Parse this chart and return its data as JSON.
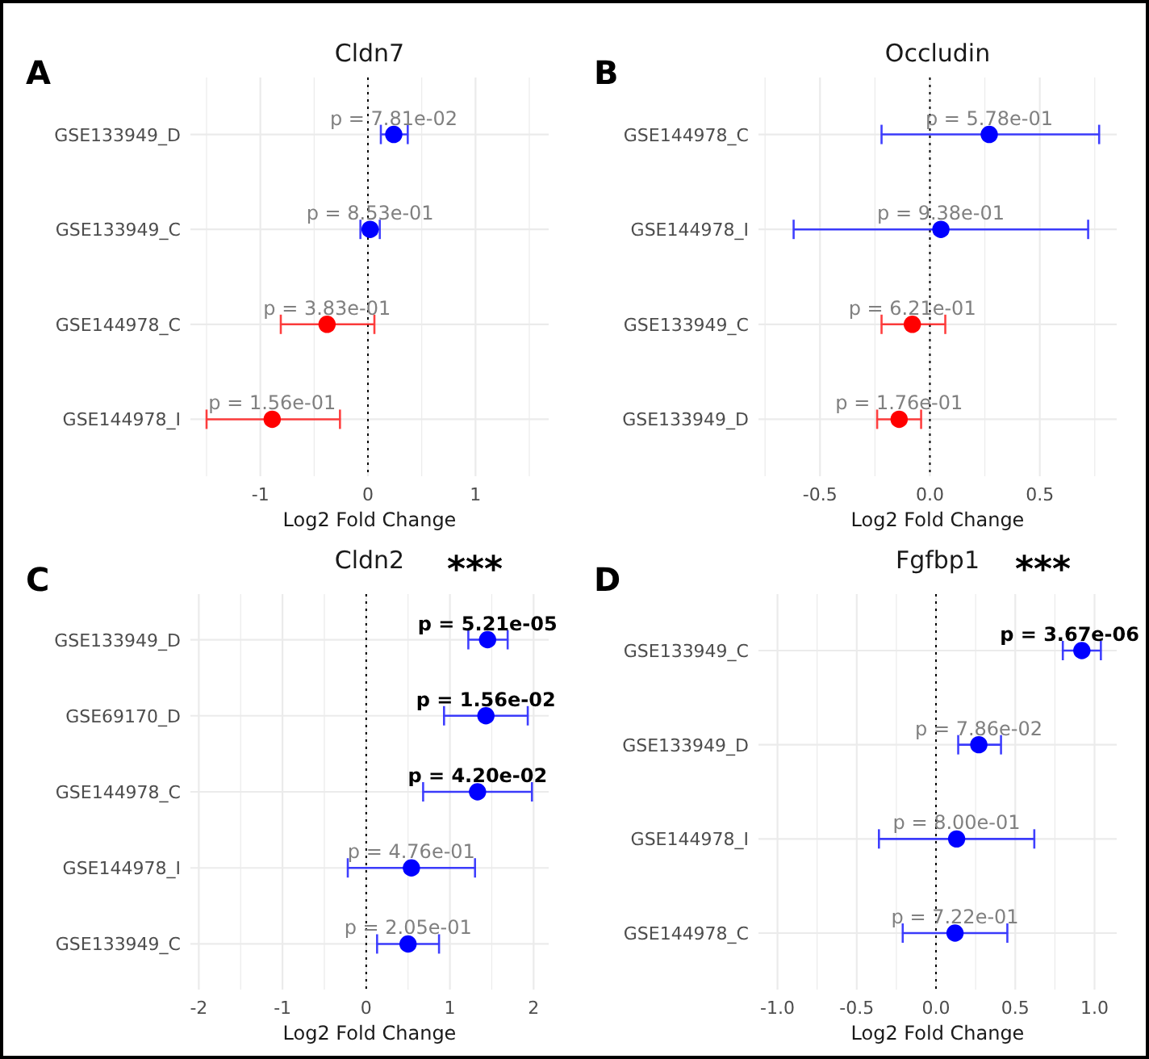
{
  "chart_data": [
    {
      "type": "scatter",
      "title": "Cldn7",
      "xlabel": "Log2 Fold Change",
      "orientation": "horizontal",
      "annotations": [
        "A"
      ],
      "categories": [
        "GSE133949_D",
        "GSE133949_C",
        "GSE144978_C",
        "GSE144978_I"
      ],
      "values": [
        0.24,
        0.02,
        -0.38,
        -0.89
      ],
      "errors": [
        [
          0.12,
          0.37
        ],
        [
          -0.07,
          0.11
        ],
        [
          -0.81,
          0.06
        ],
        [
          -1.5,
          -0.26
        ]
      ],
      "colors": [
        "#0000ff",
        "#0000ff",
        "#ff0000",
        "#ff0000"
      ],
      "value_labels": [
        "p = 7.81e-02",
        "p = 8.53e-01",
        "p = 3.83e-01",
        "p = 1.56e-01"
      ],
      "xlim": [
        -1.65,
        1.68
      ],
      "xticks": [
        {
          "value": -1.5,
          "label": null
        },
        -1,
        {
          "value": -0.5,
          "label": null
        },
        0,
        {
          "value": 0.5,
          "label": null
        },
        1,
        {
          "value": 1.5,
          "label": null
        }
      ],
      "ref_lines": [
        {
          "axis": "x",
          "value": 0,
          "line_style": "dotted",
          "color": "#000000"
        }
      ],
      "grid": true,
      "marker": "circle"
    },
    {
      "type": "scatter",
      "title": "Occludin",
      "xlabel": "Log2 Fold Change",
      "orientation": "horizontal",
      "annotations": [
        "B"
      ],
      "categories": [
        "GSE144978_C",
        "GSE144978_I",
        "GSE133949_C",
        "GSE133949_D"
      ],
      "values": [
        0.27,
        0.05,
        -0.08,
        -0.14
      ],
      "errors": [
        [
          -0.22,
          0.77
        ],
        [
          -0.62,
          0.72
        ],
        [
          -0.22,
          0.07
        ],
        [
          -0.24,
          -0.04
        ]
      ],
      "colors": [
        "#0000ff",
        "#0000ff",
        "#ff0000",
        "#ff0000"
      ],
      "value_labels": [
        "p = 5.78e-01",
        "p = 9.38e-01",
        "p = 6.21e-01",
        "p = 1.76e-01"
      ],
      "xlim": [
        -0.78,
        0.85
      ],
      "xticks": [
        {
          "value": -0.75,
          "label": null
        },
        -0.5,
        {
          "value": -0.25,
          "label": null
        },
        {
          "value": 0,
          "label": "0.0"
        },
        {
          "value": 0.25,
          "label": null
        },
        0.5,
        {
          "value": 0.75,
          "label": null
        }
      ],
      "ref_lines": [
        {
          "axis": "x",
          "value": 0,
          "line_style": "dotted",
          "color": "#000000"
        }
      ],
      "grid": true,
      "marker": "circle"
    },
    {
      "type": "scatter",
      "title": "Cldn2",
      "xlabel": "Log2 Fold Change",
      "orientation": "horizontal",
      "annotations": [
        "C",
        "***"
      ],
      "categories": [
        "GSE133949_D",
        "GSE69170_D",
        "GSE144978_C",
        "GSE144978_I",
        "GSE133949_C"
      ],
      "values": [
        1.45,
        1.43,
        1.33,
        0.54,
        0.5
      ],
      "errors": [
        [
          1.22,
          1.69
        ],
        [
          0.93,
          1.93
        ],
        [
          0.68,
          1.98
        ],
        [
          -0.22,
          1.3
        ],
        [
          0.13,
          0.87
        ]
      ],
      "colors": [
        "#0000ff",
        "#0000ff",
        "#0000ff",
        "#0000ff",
        "#0000ff"
      ],
      "value_labels": [
        "p = 5.21e-05",
        "p = 1.56e-02",
        "p = 4.20e-02",
        "p = 4.76e-01",
        "p = 2.05e-01"
      ],
      "xlim": [
        -2.1,
        2.18
      ],
      "xticks": [
        -2,
        {
          "value": -1.5,
          "label": null
        },
        -1,
        {
          "value": -0.5,
          "label": null
        },
        0,
        {
          "value": 0.5,
          "label": null
        },
        1,
        {
          "value": 1.5,
          "label": null
        },
        2
      ],
      "ref_lines": [
        {
          "axis": "x",
          "value": 0,
          "line_style": "dotted",
          "color": "#000000"
        }
      ],
      "grid": true,
      "marker": "circle"
    },
    {
      "type": "scatter",
      "title": "Fgfbp1",
      "xlabel": "Log2 Fold Change",
      "orientation": "horizontal",
      "annotations": [
        "D",
        "***"
      ],
      "categories": [
        "GSE133949_C",
        "GSE133949_D",
        "GSE144978_I",
        "GSE144978_C"
      ],
      "values": [
        0.92,
        0.27,
        0.13,
        0.12
      ],
      "errors": [
        [
          0.8,
          1.04
        ],
        [
          0.14,
          0.41
        ],
        [
          -0.36,
          0.62
        ],
        [
          -0.21,
          0.45
        ]
      ],
      "colors": [
        "#0000ff",
        "#0000ff",
        "#0000ff",
        "#0000ff"
      ],
      "value_labels": [
        "p = 3.67e-06",
        "p = 7.86e-02",
        "p = 8.00e-01",
        "p = 7.22e-01"
      ],
      "xlim": [
        -1.12,
        1.14
      ],
      "xticks": [
        {
          "value": -1,
          "label": "-1.0"
        },
        {
          "value": -0.75,
          "label": null
        },
        -0.5,
        {
          "value": -0.25,
          "label": null
        },
        {
          "value": 0,
          "label": "0.0"
        },
        {
          "value": 0.25,
          "label": null
        },
        0.5,
        {
          "value": 0.75,
          "label": null
        },
        {
          "value": 1,
          "label": "1.0"
        }
      ],
      "ref_lines": [
        {
          "axis": "x",
          "value": 0,
          "line_style": "dotted",
          "color": "#000000"
        }
      ],
      "grid": true,
      "marker": "circle"
    }
  ]
}
